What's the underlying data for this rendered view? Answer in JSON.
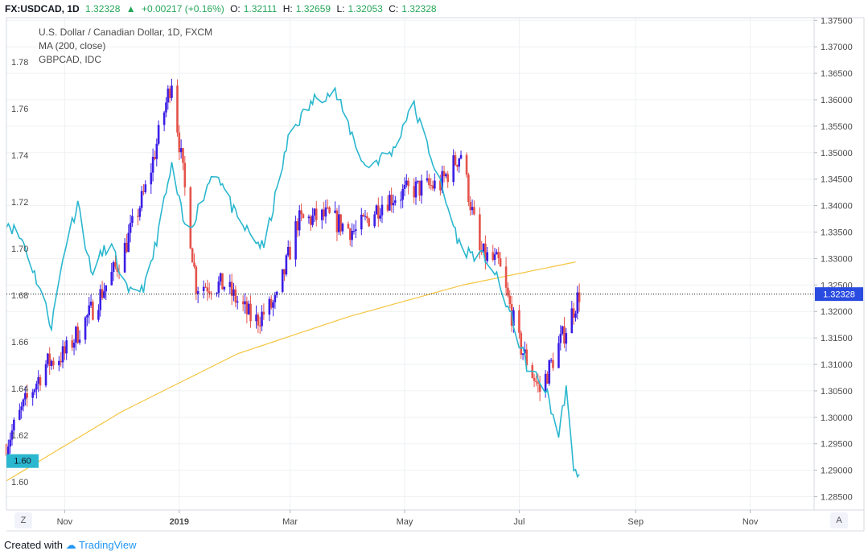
{
  "header": {
    "symbol": "FX:USDCAD, 1D",
    "last": "1.32328",
    "change": "+0.00217 (+0.16%)",
    "open_label": "O:",
    "open": "1.32111",
    "high_label": "H:",
    "high": "1.32659",
    "low_label": "L:",
    "low": "1.32053",
    "close_label": "C:",
    "close": "1.32328"
  },
  "legend": {
    "main": "U.S. Dollar / Canadian Dollar, 1D, FXCM",
    "ma": "MA (200, close)",
    "compare": "GBPCAD, IDC"
  },
  "price_badge_right": "1.32328",
  "price_badge_left": "1.60",
  "corner_left": "Z",
  "corner_right": "A",
  "footer": {
    "created": "Created with",
    "brand": "TradingView"
  },
  "colors": {
    "up": "#3a1ee6",
    "down": "#e5534b",
    "compare": "#2bb7cf",
    "ma": "#f5c542",
    "grid": "#eef0f3",
    "text": "#4a4a4a",
    "header_green": "#26a65b"
  },
  "chart_data": {
    "type": "line",
    "x_tick_labels": [
      "Nov",
      "2019",
      "Mar",
      "May",
      "Jul",
      "Sep",
      "Nov"
    ],
    "right_axis": {
      "series": "USDCAD",
      "ylim": [
        1.2825,
        1.3755
      ],
      "ticks": [
        "1.37500",
        "1.37000",
        "1.36500",
        "1.36000",
        "1.35500",
        "1.35000",
        "1.34500",
        "1.34000",
        "1.33500",
        "1.33000",
        "1.32500",
        "1.32000",
        "1.31500",
        "1.31000",
        "1.30500",
        "1.30000",
        "1.29500",
        "1.29000",
        "1.28500"
      ]
    },
    "left_axis": {
      "series": "GBPCAD",
      "ylim": [
        1.588,
        1.799
      ],
      "ticks": [
        "1.78",
        "1.76",
        "1.74",
        "1.72",
        "1.70",
        "1.68",
        "1.66",
        "1.64",
        "1.62",
        "1.60"
      ]
    },
    "time_range": [
      "2018-10-01",
      "2019-12-05"
    ],
    "ohlc_keypoints": [
      {
        "date": "2018-10-01",
        "close": 1.295
      },
      {
        "date": "2018-10-10",
        "close": 1.302
      },
      {
        "date": "2018-10-22",
        "close": 1.31
      },
      {
        "date": "2018-11-01",
        "close": 1.312
      },
      {
        "date": "2018-11-15",
        "close": 1.32
      },
      {
        "date": "2018-12-01",
        "close": 1.33
      },
      {
        "date": "2018-12-15",
        "close": 1.344
      },
      {
        "date": "2018-12-28",
        "close": 1.364
      },
      {
        "date": "2019-01-10",
        "close": 1.325
      },
      {
        "date": "2019-01-25",
        "close": 1.325
      },
      {
        "date": "2019-02-10",
        "close": 1.318
      },
      {
        "date": "2019-02-22",
        "close": 1.322
      },
      {
        "date": "2019-03-05",
        "close": 1.337
      },
      {
        "date": "2019-03-20",
        "close": 1.338
      },
      {
        "date": "2019-04-05",
        "close": 1.335
      },
      {
        "date": "2019-04-20",
        "close": 1.341
      },
      {
        "date": "2019-05-05",
        "close": 1.343
      },
      {
        "date": "2019-05-20",
        "close": 1.344
      },
      {
        "date": "2019-05-31",
        "close": 1.35
      },
      {
        "date": "2019-06-10",
        "close": 1.331
      },
      {
        "date": "2019-06-20",
        "close": 1.329
      },
      {
        "date": "2019-07-01",
        "close": 1.314
      },
      {
        "date": "2019-07-12",
        "close": 1.305
      },
      {
        "date": "2019-07-25",
        "close": 1.316
      },
      {
        "date": "2019-08-02",
        "close": 1.3233
      }
    ],
    "ma_keypoints": [
      {
        "date": "2018-10-01",
        "value": 1.288
      },
      {
        "date": "2018-12-01",
        "value": 1.301
      },
      {
        "date": "2019-02-01",
        "value": 1.312
      },
      {
        "date": "2019-04-01",
        "value": 1.319
      },
      {
        "date": "2019-06-01",
        "value": 1.325
      },
      {
        "date": "2019-08-02",
        "value": 1.3295
      }
    ],
    "compare_keypoints": [
      {
        "date": "2018-10-01",
        "value": 1.712
      },
      {
        "date": "2018-10-10",
        "value": 1.703
      },
      {
        "date": "2018-10-20",
        "value": 1.68
      },
      {
        "date": "2018-10-25",
        "value": 1.667
      },
      {
        "date": "2018-11-01",
        "value": 1.7
      },
      {
        "date": "2018-11-08",
        "value": 1.72
      },
      {
        "date": "2018-11-15",
        "value": 1.69
      },
      {
        "date": "2018-11-25",
        "value": 1.703
      },
      {
        "date": "2018-12-05",
        "value": 1.68
      },
      {
        "date": "2018-12-15",
        "value": 1.685
      },
      {
        "date": "2018-12-28",
        "value": 1.735
      },
      {
        "date": "2019-01-05",
        "value": 1.705
      },
      {
        "date": "2019-01-20",
        "value": 1.735
      },
      {
        "date": "2019-02-01",
        "value": 1.712
      },
      {
        "date": "2019-02-15",
        "value": 1.7
      },
      {
        "date": "2019-03-01",
        "value": 1.75
      },
      {
        "date": "2019-03-15",
        "value": 1.765
      },
      {
        "date": "2019-03-25",
        "value": 1.767
      },
      {
        "date": "2019-04-10",
        "value": 1.735
      },
      {
        "date": "2019-04-25",
        "value": 1.742
      },
      {
        "date": "2019-05-05",
        "value": 1.763
      },
      {
        "date": "2019-05-15",
        "value": 1.74
      },
      {
        "date": "2019-05-31",
        "value": 1.7
      },
      {
        "date": "2019-06-15",
        "value": 1.695
      },
      {
        "date": "2019-06-25",
        "value": 1.675
      },
      {
        "date": "2019-07-05",
        "value": 1.65
      },
      {
        "date": "2019-07-15",
        "value": 1.64
      },
      {
        "date": "2019-07-22",
        "value": 1.62
      },
      {
        "date": "2019-07-26",
        "value": 1.641
      },
      {
        "date": "2019-07-30",
        "value": 1.603
      },
      {
        "date": "2019-08-02",
        "value": 1.605
      }
    ]
  }
}
